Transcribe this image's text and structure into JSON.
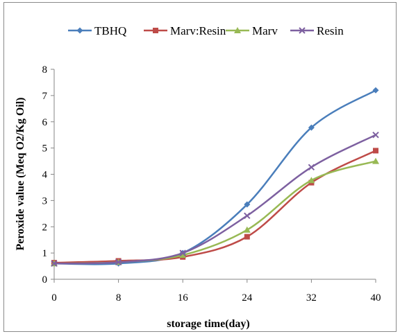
{
  "chart_data": {
    "type": "line",
    "title": "",
    "xlabel": "storage time(day)",
    "ylabel": "Peroxide value (Meq O2/Kg Oil)",
    "x": [
      0,
      8,
      16,
      24,
      32,
      40
    ],
    "xticks": [
      "0",
      "8",
      "16",
      "24",
      "32",
      "40"
    ],
    "yticks": [
      "0",
      "1",
      "2",
      "3",
      "4",
      "5",
      "6",
      "7",
      "8"
    ],
    "ylim": [
      0,
      8
    ],
    "grid": false,
    "legend_position": "top",
    "series": [
      {
        "name": "TBHQ",
        "marker": "diamond",
        "color": "#4a7ebb",
        "values": [
          0.6,
          0.6,
          1.0,
          2.85,
          5.78,
          7.2
        ]
      },
      {
        "name": "Marv:Resin",
        "marker": "square",
        "color": "#be4b48",
        "values": [
          0.63,
          0.7,
          0.85,
          1.62,
          3.68,
          4.9
        ]
      },
      {
        "name": "Marv",
        "marker": "triangle",
        "color": "#98b954",
        "values": [
          0.6,
          0.65,
          0.92,
          1.88,
          3.77,
          4.5
        ]
      },
      {
        "name": "Resin",
        "marker": "x",
        "color": "#7d60a0",
        "values": [
          0.6,
          0.65,
          1.0,
          2.42,
          4.27,
          5.5
        ]
      }
    ]
  }
}
